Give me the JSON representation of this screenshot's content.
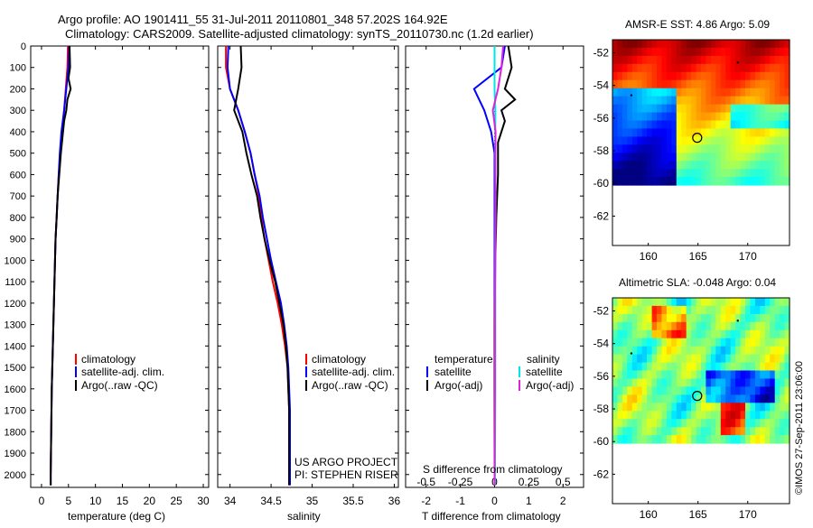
{
  "header": {
    "title_line1": "Argo profile: AO 1901411_55 31-Jul-2011 20110801_348 57.202S 164.92E",
    "title_line2": "Climatology: CARS2009. Satellite-adjusted climatology: synTS_20110730.nc (1.2d earlier)"
  },
  "colors": {
    "climatology": "#ff0000",
    "satellite": "#0000ff",
    "argo": "#000000",
    "sal_satellite": "#00e5e5",
    "sal_argo": "#e020e0"
  },
  "depth_axis": {
    "ticks": [
      0,
      100,
      200,
      300,
      400,
      500,
      600,
      700,
      800,
      900,
      1000,
      1100,
      1200,
      1300,
      1400,
      1500,
      1600,
      1700,
      1800,
      1900,
      2000
    ],
    "labels": [
      "0",
      "100",
      "200",
      "300",
      "400",
      "500",
      "600",
      "700",
      "800",
      "900",
      "1000",
      "1100",
      "1200",
      "1300",
      "1400",
      "1500",
      "1600",
      "1700",
      "1800",
      "1900",
      "2000"
    ]
  },
  "panel1": {
    "xlabel": "temperature (deg C)",
    "xticks": [
      "0",
      "5",
      "10",
      "15",
      "20",
      "25",
      "30"
    ],
    "legend": [
      "climatology",
      "satellite-adj. clim.",
      "Argo(..raw -QC)"
    ]
  },
  "panel2": {
    "xlabel": "salinity",
    "xticks": [
      "34",
      "34.5",
      "35",
      "35.5",
      "36"
    ],
    "legend": [
      "climatology",
      "satellite-adj. clim.",
      "Argo(..raw -QC)"
    ],
    "project_line1": "US ARGO PROJECT",
    "project_line2": "PI: STEPHEN RISER"
  },
  "panel3": {
    "legend_temp_title": "temperature",
    "legend_sal_title": "salinity",
    "legend_temp": [
      "satellite",
      "Argo(-adj)"
    ],
    "legend_sal": [
      "satellite",
      "Argo(-adj)"
    ],
    "s_label": "S difference from climatology",
    "s_ticks": [
      "-0.5",
      "-0.25",
      "0",
      "0.25",
      "0.5"
    ],
    "t_label": "T difference from climatology",
    "t_ticks": [
      "-2",
      "-1",
      "0",
      "1",
      "2"
    ]
  },
  "map1": {
    "title": "AMSR-E SST: 4.86 Argo: 5.09",
    "yticks": [
      "-52",
      "-54",
      "-56",
      "-58",
      "-60",
      "-62"
    ],
    "xticks": [
      "160",
      "165",
      "170"
    ]
  },
  "map2": {
    "title": "Altimetric SLA: -0.048 Argo: 0.04",
    "yticks": [
      "-52",
      "-54",
      "-56",
      "-58",
      "-60",
      "-62"
    ],
    "xticks": [
      "160",
      "165",
      "170"
    ]
  },
  "credit": "©IMOS 27-Sep-2011 23:06:00",
  "chart_data": [
    {
      "type": "line",
      "title": "Argo profile: AO 1901411_55 31-Jul-2011 20110801_348 57.202S 164.92E",
      "xlabel": "temperature (deg C)",
      "ylabel": "",
      "xlim": [
        -2,
        31
      ],
      "ylim": [
        2060,
        0
      ],
      "series": [
        {
          "name": "climatology",
          "points": [
            [
              4.9,
              0
            ],
            [
              4.8,
              100
            ],
            [
              4.5,
              200
            ],
            [
              4.2,
              300
            ],
            [
              3.8,
              400
            ],
            [
              3.5,
              500
            ],
            [
              3.2,
              600
            ],
            [
              3.0,
              700
            ],
            [
              2.8,
              800
            ],
            [
              2.6,
              900
            ],
            [
              2.5,
              1000
            ],
            [
              2.4,
              1100
            ],
            [
              2.3,
              1200
            ],
            [
              2.2,
              1300
            ],
            [
              2.1,
              1400
            ],
            [
              2.0,
              1500
            ],
            [
              1.9,
              1600
            ],
            [
              1.85,
              1700
            ],
            [
              1.8,
              1800
            ],
            [
              1.75,
              1900
            ],
            [
              1.7,
              2000
            ],
            [
              1.7,
              2050
            ]
          ]
        },
        {
          "name": "satellite-adj. clim.",
          "points": [
            [
              5.1,
              0
            ],
            [
              5.0,
              100
            ],
            [
              4.6,
              200
            ],
            [
              4.2,
              300
            ],
            [
              3.7,
              400
            ],
            [
              3.4,
              500
            ],
            [
              3.2,
              600
            ],
            [
              3.0,
              700
            ],
            [
              2.8,
              800
            ],
            [
              2.6,
              900
            ],
            [
              2.5,
              1000
            ],
            [
              2.4,
              1100
            ],
            [
              2.3,
              1200
            ],
            [
              2.2,
              1300
            ],
            [
              2.1,
              1400
            ],
            [
              2.0,
              1500
            ],
            [
              1.9,
              1600
            ],
            [
              1.85,
              1700
            ],
            [
              1.8,
              1800
            ],
            [
              1.75,
              1900
            ],
            [
              1.7,
              2000
            ],
            [
              1.7,
              2050
            ]
          ]
        },
        {
          "name": "Argo(..raw -QC)",
          "points": [
            [
              5.2,
              0
            ],
            [
              5.3,
              100
            ],
            [
              5.0,
              150
            ],
            [
              5.4,
              200
            ],
            [
              4.8,
              250
            ],
            [
              4.6,
              300
            ],
            [
              4.2,
              350
            ],
            [
              4.0,
              400
            ],
            [
              3.6,
              500
            ],
            [
              3.3,
              600
            ],
            [
              3.0,
              700
            ],
            [
              2.8,
              800
            ],
            [
              2.6,
              900
            ],
            [
              2.5,
              1000
            ],
            [
              2.4,
              1100
            ],
            [
              2.3,
              1200
            ],
            [
              2.2,
              1300
            ],
            [
              2.1,
              1400
            ],
            [
              2.0,
              1500
            ],
            [
              1.9,
              1600
            ],
            [
              1.85,
              1700
            ],
            [
              1.8,
              1800
            ],
            [
              1.75,
              1900
            ],
            [
              1.7,
              2000
            ],
            [
              1.7,
              2050
            ]
          ]
        }
      ]
    },
    {
      "type": "line",
      "xlabel": "salinity",
      "xlim": [
        33.85,
        36.05
      ],
      "ylim": [
        2060,
        0
      ],
      "series": [
        {
          "name": "climatology",
          "points": [
            [
              33.95,
              0
            ],
            [
              33.95,
              100
            ],
            [
              34.0,
              200
            ],
            [
              34.1,
              300
            ],
            [
              34.18,
              400
            ],
            [
              34.25,
              500
            ],
            [
              34.3,
              600
            ],
            [
              34.35,
              700
            ],
            [
              34.38,
              800
            ],
            [
              34.42,
              900
            ],
            [
              34.47,
              1000
            ],
            [
              34.52,
              1100
            ],
            [
              34.58,
              1200
            ],
            [
              34.63,
              1300
            ],
            [
              34.67,
              1400
            ],
            [
              34.7,
              1500
            ],
            [
              34.71,
              1600
            ],
            [
              34.72,
              1700
            ],
            [
              34.72,
              1800
            ],
            [
              34.72,
              1900
            ],
            [
              34.72,
              2000
            ],
            [
              34.72,
              2050
            ]
          ]
        },
        {
          "name": "satellite-adj. clim.",
          "points": [
            [
              33.98,
              0
            ],
            [
              33.97,
              100
            ],
            [
              34.0,
              200
            ],
            [
              34.1,
              300
            ],
            [
              34.18,
              400
            ],
            [
              34.25,
              500
            ],
            [
              34.3,
              600
            ],
            [
              34.36,
              700
            ],
            [
              34.4,
              800
            ],
            [
              34.45,
              900
            ],
            [
              34.5,
              1000
            ],
            [
              34.56,
              1100
            ],
            [
              34.62,
              1200
            ],
            [
              34.66,
              1300
            ],
            [
              34.69,
              1400
            ],
            [
              34.71,
              1500
            ],
            [
              34.72,
              1600
            ],
            [
              34.73,
              1700
            ],
            [
              34.73,
              1800
            ],
            [
              34.73,
              1900
            ],
            [
              34.73,
              2000
            ],
            [
              34.73,
              2050
            ]
          ]
        },
        {
          "name": "Argo(..raw -QC)",
          "points": [
            [
              34.13,
              0
            ],
            [
              34.14,
              100
            ],
            [
              34.1,
              200
            ],
            [
              34.05,
              300
            ],
            [
              34.15,
              400
            ],
            [
              34.2,
              500
            ],
            [
              34.26,
              600
            ],
            [
              34.33,
              700
            ],
            [
              34.37,
              800
            ],
            [
              34.42,
              900
            ],
            [
              34.48,
              1000
            ],
            [
              34.55,
              1100
            ],
            [
              34.6,
              1200
            ],
            [
              34.65,
              1300
            ],
            [
              34.68,
              1400
            ],
            [
              34.7,
              1500
            ],
            [
              34.71,
              1600
            ],
            [
              34.72,
              1700
            ],
            [
              34.72,
              1800
            ],
            [
              34.72,
              1900
            ],
            [
              34.72,
              2000
            ],
            [
              34.72,
              2050
            ]
          ]
        }
      ]
    },
    {
      "type": "line",
      "xlabel": "T difference from climatology",
      "xlim": [
        -2.6,
        2.6
      ],
      "ylim": [
        2060,
        0
      ],
      "series": [
        {
          "name": "temperature satellite",
          "points": [
            [
              0.3,
              0
            ],
            [
              0.2,
              100
            ],
            [
              -0.6,
              200
            ],
            [
              -0.3,
              300
            ],
            [
              -0.1,
              400
            ],
            [
              0.0,
              500
            ],
            [
              0.0,
              700
            ],
            [
              0.0,
              900
            ],
            [
              0.0,
              1200
            ],
            [
              0.0,
              1600
            ],
            [
              0.0,
              2000
            ],
            [
              0.0,
              2050
            ]
          ]
        },
        {
          "name": "temperature Argo(-adj)",
          "points": [
            [
              0.4,
              0
            ],
            [
              0.5,
              100
            ],
            [
              0.3,
              200
            ],
            [
              0.6,
              250
            ],
            [
              0.2,
              300
            ],
            [
              0.3,
              350
            ],
            [
              0.1,
              450
            ],
            [
              0.1,
              600
            ],
            [
              0.05,
              800
            ],
            [
              0.02,
              1000
            ],
            [
              0.0,
              1300
            ],
            [
              0.0,
              1600
            ],
            [
              0.0,
              2000
            ],
            [
              0.0,
              2050
            ]
          ]
        },
        {
          "name": "salinity satellite",
          "points": [
            [
              0.0,
              0
            ],
            [
              0.0,
              100
            ],
            [
              0.0,
              200
            ],
            [
              0.02,
              300
            ],
            [
              0.02,
              400
            ],
            [
              0.02,
              500
            ],
            [
              0.03,
              700
            ],
            [
              0.02,
              900
            ],
            [
              0.02,
              1200
            ],
            [
              0.02,
              1600
            ],
            [
              0.01,
              2000
            ],
            [
              0.01,
              2050
            ]
          ]
        },
        {
          "name": "salinity Argo(-adj)",
          "points": [
            [
              0.25,
              0
            ],
            [
              0.2,
              100
            ],
            [
              0.1,
              200
            ],
            [
              -0.05,
              300
            ],
            [
              0.03,
              400
            ],
            [
              0.02,
              500
            ],
            [
              0.02,
              700
            ],
            [
              0.02,
              900
            ],
            [
              0.01,
              1200
            ],
            [
              0.01,
              1600
            ],
            [
              0.0,
              2000
            ],
            [
              0.0,
              2050
            ]
          ]
        }
      ]
    }
  ]
}
